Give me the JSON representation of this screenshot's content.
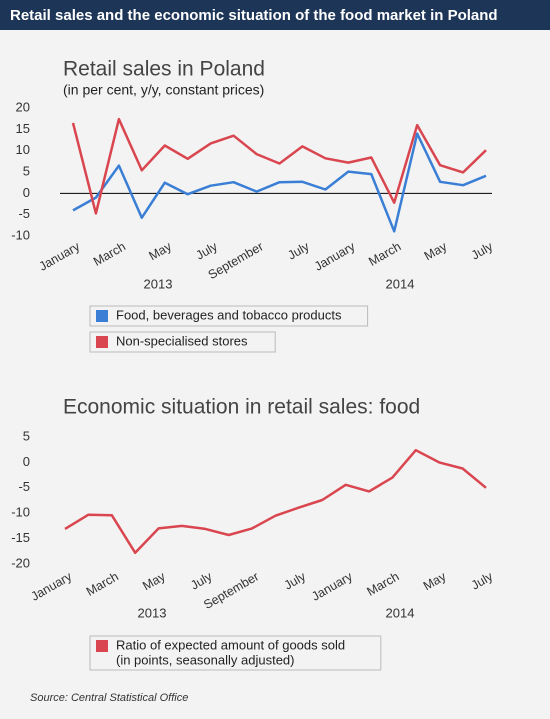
{
  "header": {
    "title": "Retail sales and the economic situation of the food market in Poland"
  },
  "chart_data": [
    {
      "type": "line",
      "title": "Retail sales in Poland",
      "subtitle": "(in per cent, y/y, constant prices)",
      "categories": [
        "January",
        null,
        "March",
        null,
        "May",
        null,
        "July",
        null,
        "September",
        null,
        "July",
        null,
        "January",
        null,
        "March",
        null,
        "May",
        null,
        "July"
      ],
      "year_labels": [
        "2013",
        "2014"
      ],
      "series": [
        {
          "name": "Food, beverages and tobacco products",
          "color": "#3a7fd5",
          "values": [
            -4,
            -1,
            6.5,
            -5.7,
            2.5,
            -0.2,
            1.8,
            2.6,
            0.4,
            2.6,
            2.7,
            0.9,
            5.1,
            4.5,
            -8.9,
            14,
            2.7,
            1.9,
            4.1
          ]
        },
        {
          "name": "Non-specialised stores",
          "color": "#d9464f",
          "values": [
            16.5,
            -4.7,
            17.4,
            5.4,
            11.2,
            8.1,
            11.7,
            13.5,
            9.2,
            7,
            11,
            8.2,
            7.2,
            8.4,
            -2.2,
            16,
            6.6,
            4.9,
            10.1
          ]
        }
      ],
      "ylim": [
        -10,
        20
      ],
      "yticks": [
        20,
        15,
        10,
        5,
        0,
        -5,
        -10
      ],
      "zero_line": true
    },
    {
      "type": "line",
      "title": "Economic situation in retail sales: food",
      "categories": [
        "January",
        null,
        "March",
        null,
        "May",
        null,
        "July",
        null,
        "September",
        null,
        "July",
        null,
        "January",
        null,
        "March",
        null,
        "May",
        null,
        "July"
      ],
      "year_labels": [
        "2013",
        "2014"
      ],
      "series": [
        {
          "name": "Ratio of expected amount of goods sold",
          "note": "(in points, seasonally adjusted)",
          "color": "#d9464f",
          "values": [
            -13.1,
            -10.3,
            -10.4,
            -17.8,
            -13,
            -12.5,
            -13.1,
            -14.3,
            -13,
            -10.5,
            -8.9,
            -7.4,
            -4.4,
            -5.7,
            -3,
            2.4,
            0,
            -1.2,
            -5
          ]
        }
      ],
      "ylim": [
        -20,
        5
      ],
      "yticks": [
        5,
        0,
        -5,
        -10,
        -15,
        -20
      ],
      "zero_line": false
    }
  ],
  "source": "Source: Central Statistical Office"
}
